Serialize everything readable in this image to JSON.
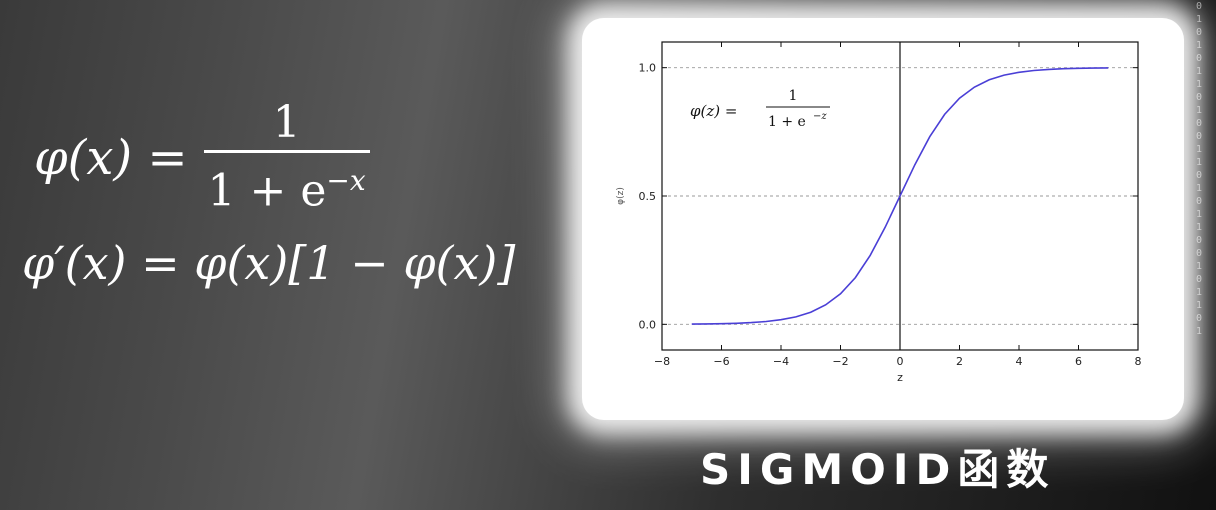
{
  "formulas": {
    "sigmoid": {
      "lhs": "φ(x) =",
      "numerator": "1",
      "denominator_base": "1 + e",
      "denominator_exp": "−x"
    },
    "derivative": "φ′(x) = φ(x)[1 − φ(x)]"
  },
  "caption": "SIGMOID函数",
  "background_digits": [
    "0",
    "1",
    "0",
    "1",
    "0",
    "1",
    "1",
    "0",
    "1",
    "0",
    "0",
    "1",
    "1",
    "0",
    "1",
    "0",
    "1",
    "1",
    "0",
    "0",
    "1",
    "0",
    "1",
    "1",
    "0",
    "1"
  ],
  "chart_data": {
    "type": "line",
    "title": "",
    "xlabel": "z",
    "ylabel": "φ(z)",
    "xlim": [
      -8,
      8
    ],
    "ylim": [
      -0.1,
      1.1
    ],
    "x_ticks": [
      -8,
      -6,
      -4,
      -2,
      0,
      2,
      4,
      6,
      8
    ],
    "y_ticks": [
      0.0,
      0.5,
      1.0
    ],
    "x_tick_labels": [
      "−8",
      "−6",
      "−4",
      "−2",
      "0",
      "2",
      "4",
      "6",
      "8"
    ],
    "y_tick_labels": [
      "0.0",
      "0.5",
      "1.0"
    ],
    "grid": "horizontal dashed at y ticks",
    "vertical_line_x": 0,
    "annotation": {
      "lhs": "φ(z) =",
      "numerator": "1",
      "denominator": "1 + e",
      "exponent": "−z"
    },
    "series": [
      {
        "color": "#4a3fd6",
        "x": [
          -7,
          -6.5,
          -6,
          -5.5,
          -5,
          -4.5,
          -4,
          -3.5,
          -3,
          -2.5,
          -2,
          -1.5,
          -1,
          -0.5,
          0,
          0.5,
          1,
          1.5,
          2,
          2.5,
          3,
          3.5,
          4,
          4.5,
          5,
          5.5,
          6,
          6.5,
          7
        ],
        "y": [
          0.0009,
          0.0015,
          0.0025,
          0.0041,
          0.0067,
          0.011,
          0.018,
          0.029,
          0.047,
          0.076,
          0.119,
          0.182,
          0.269,
          0.378,
          0.5,
          0.622,
          0.731,
          0.818,
          0.881,
          0.924,
          0.953,
          0.971,
          0.982,
          0.989,
          0.993,
          0.996,
          0.9975,
          0.9985,
          0.9991
        ]
      }
    ]
  }
}
